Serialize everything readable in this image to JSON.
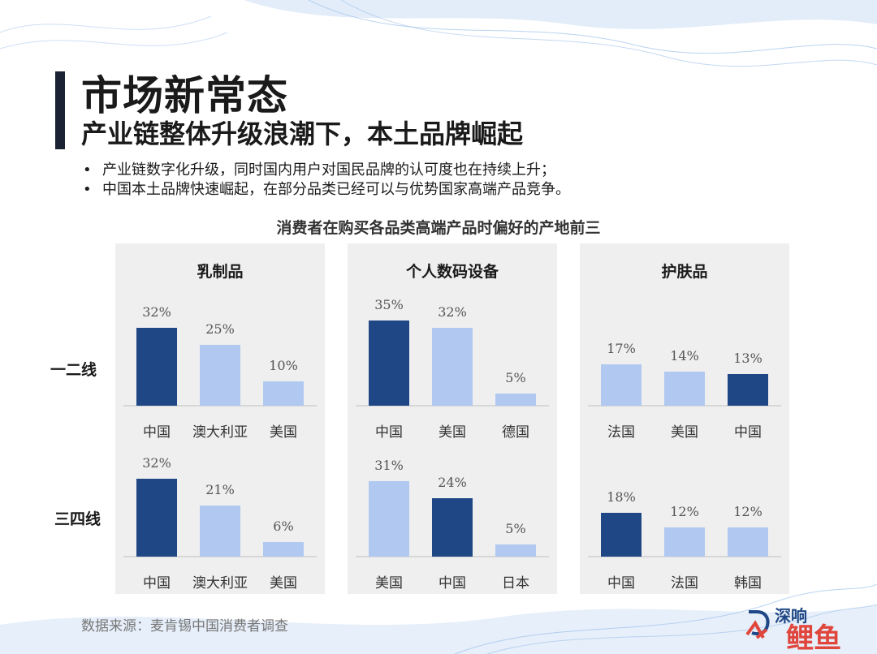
{
  "title": "市场新常态",
  "subtitle": "产业链整体升级浪潮下，本土品牌崛起",
  "bullets": [
    "产业链数字化升级，同时国内用户对国民品牌的认可度也在持续上升；",
    "中国本土品牌快速崛起，在部分品类已经可以与优势国家高端产品竞争。"
  ],
  "bullet_marker": "•",
  "chart_title": "消费者在购买各品类高端产品时偏好的产地前三",
  "row_labels": [
    "一二线",
    "三四线"
  ],
  "source": "数据来源：麦肯锡中国消费者调查",
  "colors": {
    "dark": "#1f4785",
    "light": "#b1c9f1",
    "panel": "#efefef",
    "baseline": "#cfcfcf"
  },
  "logo_text": {
    "line1": "深响",
    "line2": "鲤鱼"
  },
  "chart_data": {
    "type": "bar",
    "panels": [
      {
        "name": "乳制品",
        "groups": [
          {
            "row": "一二线",
            "categories": [
              "中国",
              "澳大利亚",
              "美国"
            ],
            "values": [
              32,
              25,
              10
            ],
            "labels": [
              "32%",
              "25%",
              "10%"
            ],
            "highlight": [
              true,
              false,
              false
            ]
          },
          {
            "row": "三四线",
            "categories": [
              "中国",
              "澳大利亚",
              "美国"
            ],
            "values": [
              32,
              21,
              6
            ],
            "labels": [
              "32%",
              "21%",
              "6%"
            ],
            "highlight": [
              true,
              false,
              false
            ]
          }
        ]
      },
      {
        "name": "个人数码设备",
        "groups": [
          {
            "row": "一二线",
            "categories": [
              "中国",
              "美国",
              "德国"
            ],
            "values": [
              35,
              32,
              5
            ],
            "labels": [
              "35%",
              "32%",
              "5%"
            ],
            "highlight": [
              true,
              false,
              false
            ]
          },
          {
            "row": "三四线",
            "categories": [
              "美国",
              "中国",
              "日本"
            ],
            "values": [
              31,
              24,
              5
            ],
            "labels": [
              "31%",
              "24%",
              "5%"
            ],
            "highlight": [
              false,
              true,
              false
            ]
          }
        ]
      },
      {
        "name": "护肤品",
        "groups": [
          {
            "row": "一二线",
            "categories": [
              "法国",
              "美国",
              "中国"
            ],
            "values": [
              17,
              14,
              13
            ],
            "labels": [
              "17%",
              "14%",
              "13%"
            ],
            "highlight": [
              false,
              false,
              true
            ]
          },
          {
            "row": "三四线",
            "categories": [
              "中国",
              "法国",
              "韩国"
            ],
            "values": [
              18,
              12,
              12
            ],
            "labels": [
              "18%",
              "12%",
              "12%"
            ],
            "highlight": [
              true,
              false,
              false
            ]
          }
        ]
      }
    ]
  }
}
